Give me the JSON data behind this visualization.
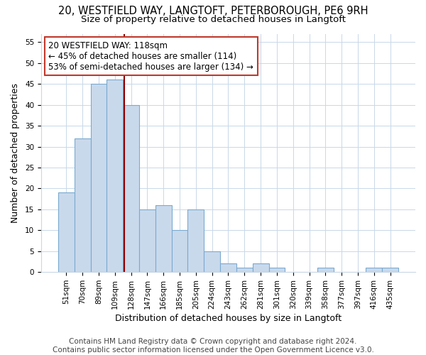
{
  "title1": "20, WESTFIELD WAY, LANGTOFT, PETERBOROUGH, PE6 9RH",
  "title2": "Size of property relative to detached houses in Langtoft",
  "xlabel": "Distribution of detached houses by size in Langtoft",
  "ylabel": "Number of detached properties",
  "categories": [
    "51sqm",
    "70sqm",
    "89sqm",
    "109sqm",
    "128sqm",
    "147sqm",
    "166sqm",
    "185sqm",
    "205sqm",
    "224sqm",
    "243sqm",
    "262sqm",
    "281sqm",
    "301sqm",
    "320sqm",
    "339sqm",
    "358sqm",
    "377sqm",
    "397sqm",
    "416sqm",
    "435sqm"
  ],
  "values": [
    19,
    32,
    45,
    46,
    40,
    15,
    16,
    10,
    15,
    5,
    2,
    1,
    2,
    1,
    0,
    0,
    1,
    0,
    0,
    1,
    1
  ],
  "bar_color": "#c9d9ec",
  "bar_edge_color": "#7aaad0",
  "bar_width": 1.0,
  "vline_x": 3.58,
  "vline_color": "#8b0000",
  "annotation_text": "20 WESTFIELD WAY: 118sqm\n← 45% of detached houses are smaller (114)\n53% of semi-detached houses are larger (134) →",
  "annotation_box_color": "#ffffff",
  "annotation_box_edge": "#c0392b",
  "ylim": [
    0,
    57
  ],
  "yticks": [
    0,
    5,
    10,
    15,
    20,
    25,
    30,
    35,
    40,
    45,
    50,
    55
  ],
  "footer": "Contains HM Land Registry data © Crown copyright and database right 2024.\nContains public sector information licensed under the Open Government Licence v3.0.",
  "bg_color": "#ffffff",
  "plot_bg_color": "#ffffff",
  "grid_color": "#c8d8e8",
  "title1_fontsize": 10.5,
  "title2_fontsize": 9.5,
  "xlabel_fontsize": 9,
  "ylabel_fontsize": 9,
  "tick_fontsize": 7.5,
  "footer_fontsize": 7.5
}
